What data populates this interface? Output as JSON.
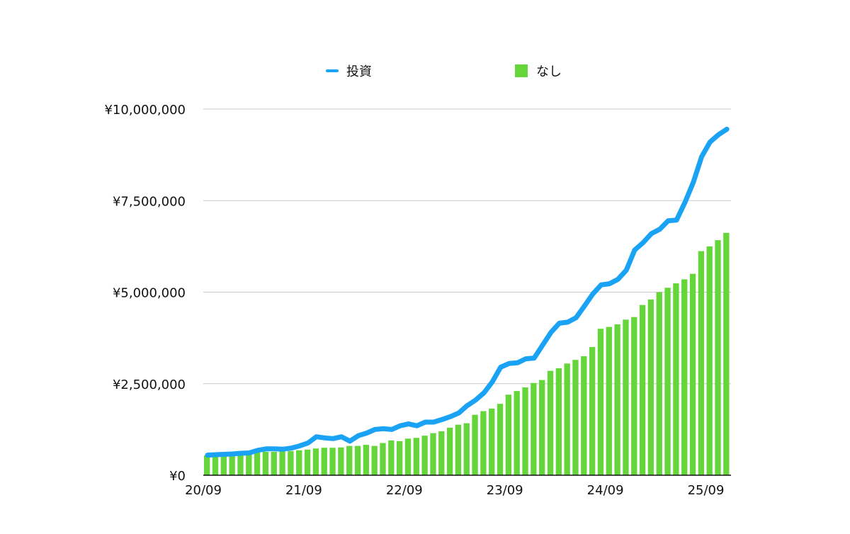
{
  "chart_data": {
    "type": "bar+line",
    "title": "",
    "xlabel": "",
    "ylabel": "",
    "ylim": [
      0,
      10000000
    ],
    "yticks": [
      0,
      2500000,
      5000000,
      7500000,
      10000000
    ],
    "ytick_labels": [
      "¥0",
      "¥2,500,000",
      "¥5,000,000",
      "¥7,500,000",
      "¥10,000,000"
    ],
    "xtick_labels": [
      "20/09",
      "21/09",
      "22/09",
      "23/09",
      "24/09",
      "25/09"
    ],
    "xtick_every": 12,
    "grid": true,
    "legend_position": "top-center",
    "series": [
      {
        "name": "投資",
        "kind": "line",
        "color": "#1aa3f5",
        "values": [
          550000,
          560000,
          570000,
          580000,
          600000,
          610000,
          680000,
          720000,
          720000,
          710000,
          740000,
          800000,
          880000,
          1050000,
          1020000,
          1000000,
          1050000,
          930000,
          1080000,
          1150000,
          1250000,
          1270000,
          1250000,
          1350000,
          1400000,
          1350000,
          1450000,
          1450000,
          1520000,
          1600000,
          1700000,
          1900000,
          2050000,
          2250000,
          2550000,
          2950000,
          3050000,
          3070000,
          3180000,
          3200000,
          3550000,
          3900000,
          4150000,
          4180000,
          4300000,
          4620000,
          4950000,
          5200000,
          5230000,
          5350000,
          5600000,
          6150000,
          6350000,
          6600000,
          6720000,
          6950000,
          6970000,
          7450000,
          8000000,
          8700000,
          9100000,
          9300000,
          9450000
        ]
      },
      {
        "name": "なし",
        "kind": "bar",
        "color": "#65d63a",
        "values": [
          540000,
          550000,
          560000,
          570000,
          580000,
          600000,
          620000,
          640000,
          640000,
          650000,
          660000,
          680000,
          700000,
          730000,
          750000,
          750000,
          760000,
          800000,
          800000,
          830000,
          800000,
          880000,
          950000,
          930000,
          1000000,
          1020000,
          1080000,
          1150000,
          1200000,
          1300000,
          1380000,
          1420000,
          1650000,
          1750000,
          1820000,
          1950000,
          2200000,
          2300000,
          2400000,
          2520000,
          2600000,
          2850000,
          2920000,
          3050000,
          3150000,
          3250000,
          3500000,
          4000000,
          4050000,
          4120000,
          4250000,
          4320000,
          4650000,
          4800000,
          5000000,
          5120000,
          5240000,
          5350000,
          5500000,
          6120000,
          6250000,
          6420000,
          6620000
        ]
      }
    ]
  }
}
